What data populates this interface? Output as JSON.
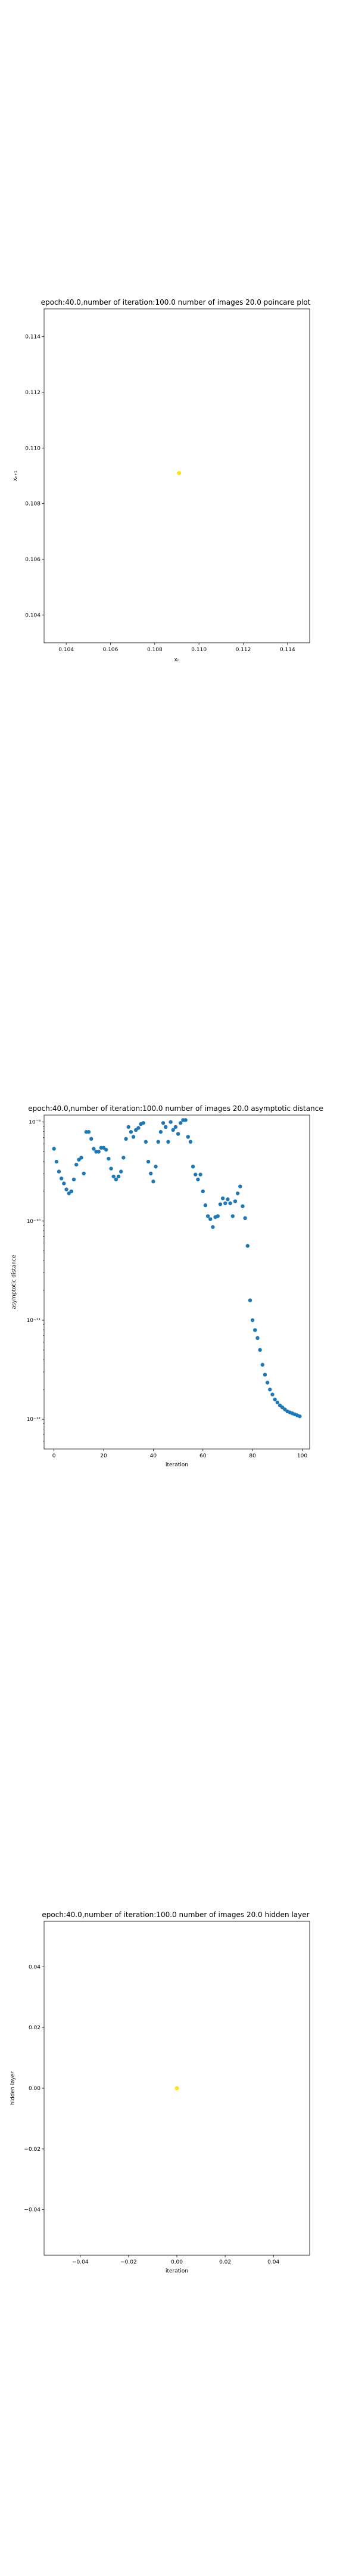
{
  "chart_data": [
    {
      "type": "scatter",
      "title": "epoch:40.0,number of iteration:100.0 number of images 20.0 poincare plot",
      "xlabel": "xₙ",
      "ylabel": "xₙ₊₁",
      "xlim": [
        0.103,
        0.115
      ],
      "ylim": [
        0.103,
        0.115
      ],
      "xticks": [
        0.104,
        0.106,
        0.108,
        0.11,
        0.112,
        0.114
      ],
      "xtick_labels": [
        "0.104",
        "0.106",
        "0.108",
        "0.110",
        "0.112",
        "0.114"
      ],
      "yticks": [
        0.104,
        0.106,
        0.108,
        0.11,
        0.112,
        0.114
      ],
      "ytick_labels": [
        "0.104",
        "0.106",
        "0.108",
        "0.110",
        "0.112",
        "0.114"
      ],
      "points": [
        [
          0.1091,
          0.1091
        ]
      ],
      "color": "#ffe119"
    },
    {
      "type": "scatter",
      "title": "epoch:40.0,number of iteration:100.0  number of images 20.0 asymptotic distance",
      "xlabel": "iteration",
      "ylabel": "asymptotic distance",
      "xlim": [
        -4,
        103
      ],
      "ylim_log10": [
        -12.3,
        -8.93
      ],
      "yscale": "log",
      "xticks": [
        0,
        20,
        40,
        60,
        80,
        100
      ],
      "xtick_labels": [
        "0",
        "20",
        "40",
        "60",
        "80",
        "100"
      ],
      "yticks_log10": [
        -9,
        -10,
        -11,
        -12
      ],
      "ytick_labels": [
        "10⁻⁹",
        "10⁻¹⁰",
        "10⁻¹¹",
        "10⁻¹²"
      ],
      "x": [
        0,
        1,
        2,
        3,
        4,
        5,
        6,
        7,
        8,
        9,
        10,
        11,
        12,
        13,
        14,
        15,
        16,
        17,
        18,
        19,
        20,
        21,
        22,
        23,
        24,
        25,
        26,
        27,
        28,
        29,
        30,
        31,
        32,
        33,
        34,
        35,
        36,
        37,
        38,
        39,
        40,
        41,
        42,
        43,
        44,
        45,
        46,
        47,
        48,
        49,
        50,
        51,
        52,
        53,
        54,
        55,
        56,
        57,
        58,
        59,
        60,
        61,
        62,
        63,
        64,
        65,
        66,
        67,
        68,
        69,
        70,
        71,
        72,
        73,
        74,
        75,
        76,
        77,
        78,
        79,
        80,
        81,
        82,
        83,
        84,
        85,
        86,
        87,
        88,
        89,
        90,
        91,
        92,
        93,
        94,
        95,
        96,
        97,
        98,
        99
      ],
      "log10_y": [
        -9.27,
        -9.4,
        -9.5,
        -9.57,
        -9.62,
        -9.68,
        -9.72,
        -9.7,
        -9.58,
        -9.43,
        -9.38,
        -9.36,
        -9.52,
        -9.1,
        -9.1,
        -9.17,
        -9.27,
        -9.3,
        -9.3,
        -9.26,
        -9.26,
        -9.28,
        -9.37,
        -9.47,
        -9.55,
        -9.58,
        -9.55,
        -9.5,
        -9.36,
        -9.17,
        -9.05,
        -9.1,
        -9.15,
        -9.08,
        -9.06,
        -9.02,
        -9.01,
        -9.2,
        -9.4,
        -9.52,
        -9.6,
        -9.45,
        -9.2,
        -9.1,
        -9.01,
        -9.05,
        -9.2,
        -9.0,
        -9.08,
        -9.05,
        -9.12,
        -9.01,
        -8.98,
        -8.98,
        -9.15,
        -9.2,
        -9.45,
        -9.53,
        -9.58,
        -9.53,
        -9.7,
        -9.84,
        -9.95,
        -9.98,
        -10.06,
        -9.96,
        -9.95,
        -9.83,
        -9.77,
        -9.82,
        -9.78,
        -9.82,
        -9.95,
        -9.8,
        -9.72,
        -9.65,
        -9.85,
        -9.97,
        -10.25,
        -10.8,
        -11.0,
        -11.1,
        -11.18,
        -11.3,
        -11.45,
        -11.55,
        -11.63,
        -11.7,
        -11.75,
        -11.8,
        -11.83,
        -11.86,
        -11.88,
        -11.9,
        -11.92,
        -11.93,
        -11.94,
        -11.95,
        -11.96,
        -11.97
      ],
      "color": "#1f77b4"
    },
    {
      "type": "scatter",
      "title": "epoch:40.0,number of iteration:100.0  number of images 20.0 hidden layer",
      "xlabel": "iteration",
      "ylabel": "hidden layer",
      "xlim": [
        -0.055,
        0.055
      ],
      "ylim": [
        -0.055,
        0.055
      ],
      "xticks": [
        -0.04,
        -0.02,
        0.0,
        0.02,
        0.04
      ],
      "xtick_labels": [
        "−0.04",
        "−0.02",
        "0.00",
        "0.02",
        "0.04"
      ],
      "yticks": [
        0.04,
        0.02,
        0.0,
        -0.02,
        -0.04
      ],
      "ytick_labels": [
        "0.04",
        "0.02",
        "0.00",
        "−0.02",
        "−0.04"
      ],
      "points": [
        [
          0.0,
          0.0
        ]
      ],
      "color": "#ffe119"
    }
  ]
}
